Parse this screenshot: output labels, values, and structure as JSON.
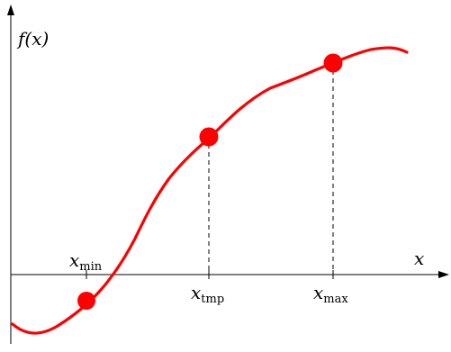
{
  "labels": {
    "y_axis": "f(x)",
    "x_axis": "x",
    "marks": [
      {
        "base": "x",
        "sub": "min"
      },
      {
        "base": "x",
        "sub": "tmp"
      },
      {
        "base": "x",
        "sub": "max"
      }
    ]
  },
  "colors": {
    "curve": "#ff0000",
    "points": "#ff0000",
    "axes": "#000000"
  }
}
